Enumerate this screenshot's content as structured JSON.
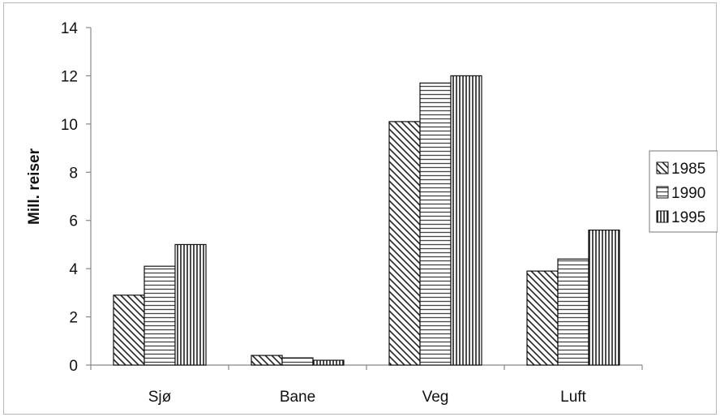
{
  "chart_data": {
    "type": "bar",
    "title": "",
    "xlabel": "",
    "ylabel": "Mill. reiser",
    "ylim": [
      0,
      14
    ],
    "yticks": [
      0,
      2,
      4,
      6,
      8,
      10,
      12,
      14
    ],
    "grid": false,
    "legend_position": "right",
    "categories": [
      "Sjø",
      "Bane",
      "Veg",
      "Luft"
    ],
    "series": [
      {
        "name": "1985",
        "pattern": "diagonal-hatch",
        "values": [
          2.9,
          0.4,
          10.1,
          3.9
        ]
      },
      {
        "name": "1990",
        "pattern": "horizontal-lines",
        "values": [
          4.1,
          0.3,
          11.7,
          4.4
        ]
      },
      {
        "name": "1995",
        "pattern": "vertical-lines",
        "values": [
          5.0,
          0.2,
          12.0,
          5.6
        ]
      }
    ],
    "colors": {
      "stroke": "#111111",
      "background": "#ffffff",
      "axis": "#888888"
    }
  }
}
